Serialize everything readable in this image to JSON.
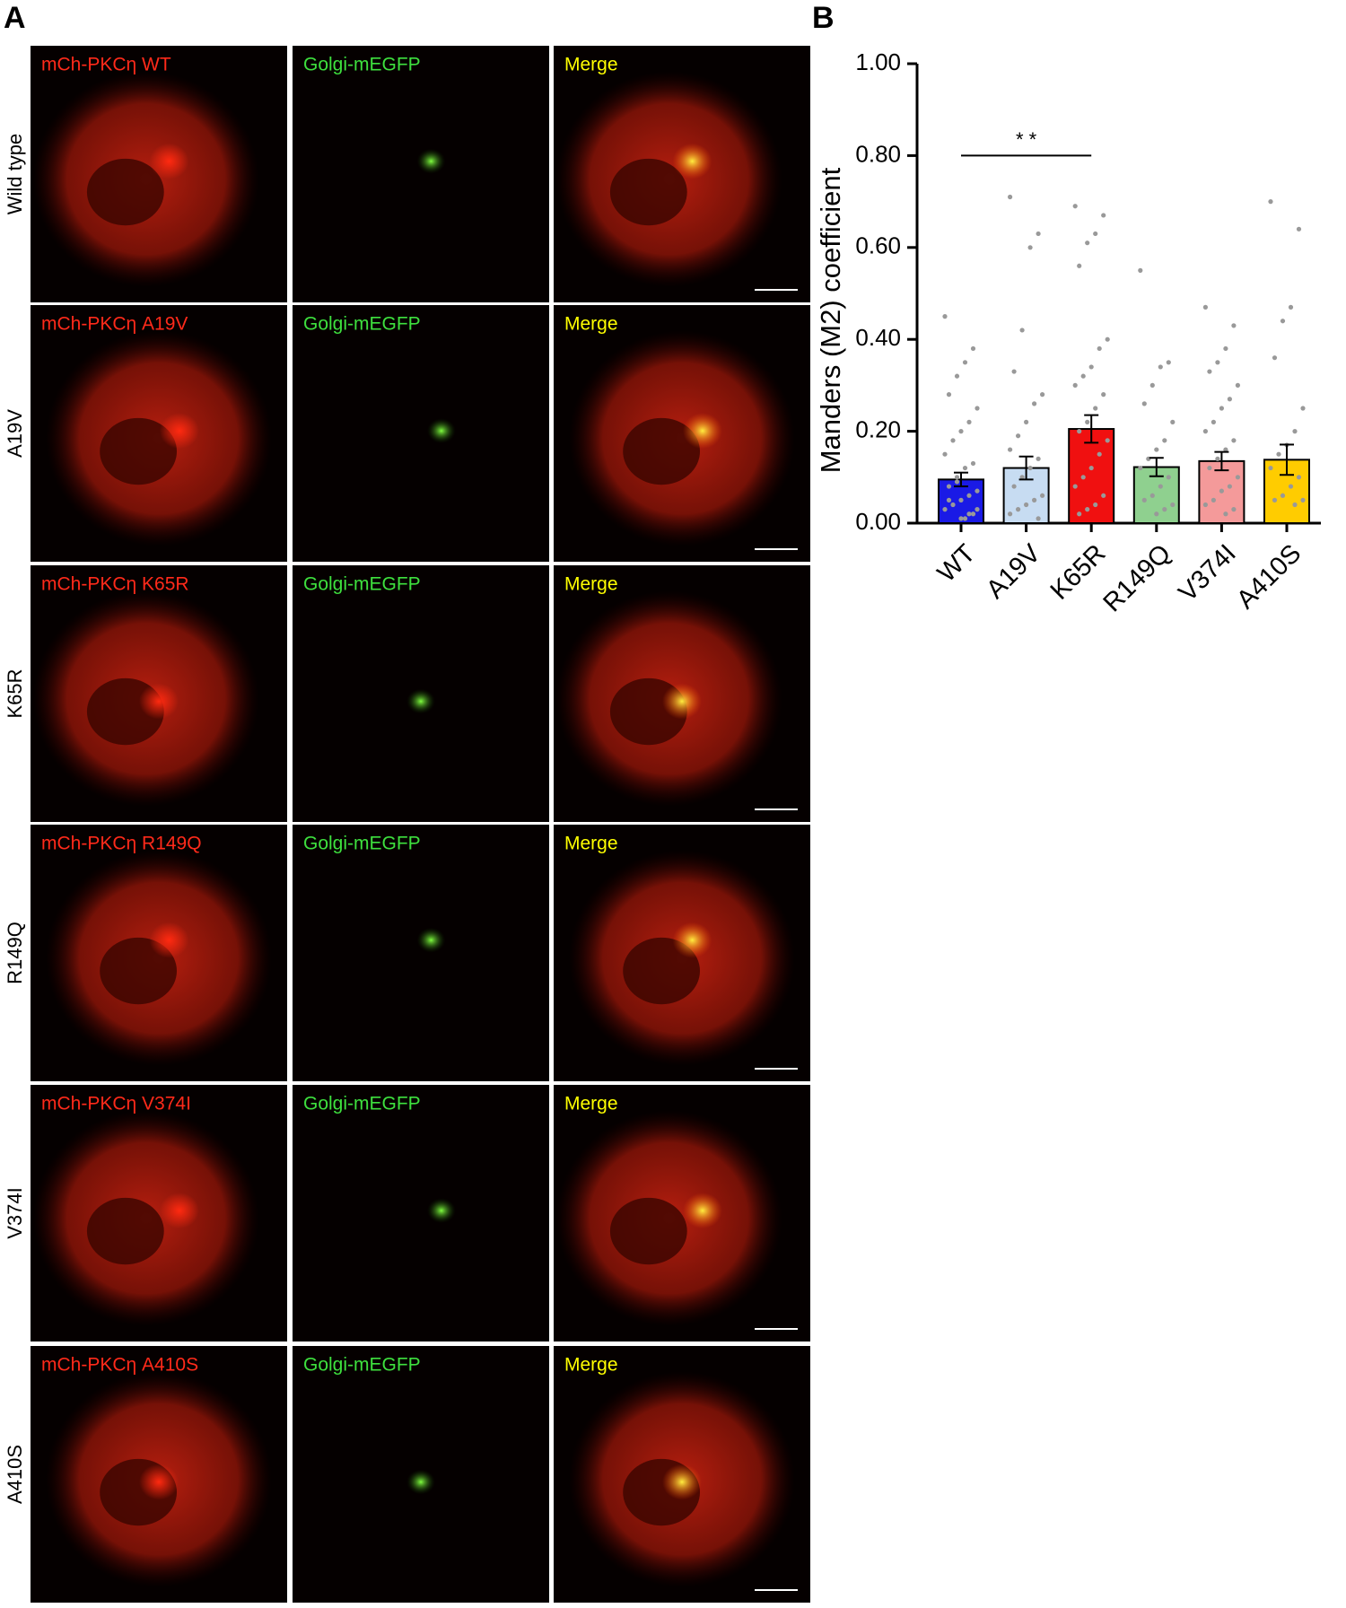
{
  "panel_a": {
    "label": "A",
    "rows": [
      {
        "name": "Wild type",
        "labels": [
          "mCh-PKCη WT",
          "Golgi-mEGFP",
          "Merge"
        ]
      },
      {
        "name": "A19V",
        "labels": [
          "mCh-PKCη A19V",
          "Golgi-mEGFP",
          "Merge"
        ]
      },
      {
        "name": "K65R",
        "labels": [
          "mCh-PKCη K65R",
          "Golgi-mEGFP",
          "Merge"
        ]
      },
      {
        "name": "R149Q",
        "labels": [
          "mCh-PKCη R149Q",
          "Golgi-mEGFP",
          "Merge"
        ]
      },
      {
        "name": "V374I",
        "labels": [
          "mCh-PKCη V374I",
          "Golgi-mEGFP",
          "Merge"
        ]
      },
      {
        "name": "A410S",
        "labels": [
          "mCh-PKCη A410S",
          "Golgi-mEGFP",
          "Merge"
        ]
      }
    ]
  },
  "panel_b_label": "B",
  "chart_data": {
    "type": "bar",
    "y_label": "Manders (M2) coefficient",
    "categories": [
      "WT",
      "A19V",
      "K65R",
      "R149Q",
      "V374I",
      "A410S"
    ],
    "values": [
      0.095,
      0.12,
      0.205,
      0.122,
      0.135,
      0.138
    ],
    "errors": [
      0.015,
      0.025,
      0.03,
      0.02,
      0.02,
      0.033
    ],
    "colors": [
      "#1a1ae6",
      "#c7dcf2",
      "#f01010",
      "#8fd08f",
      "#f49a9a",
      "#ffcc00"
    ],
    "points": [
      [
        0.45,
        0.38,
        0.35,
        0.32,
        0.28,
        0.25,
        0.22,
        0.2,
        0.18,
        0.15,
        0.13,
        0.12,
        0.1,
        0.08,
        0.07,
        0.06,
        0.05,
        0.04,
        0.03,
        0.02,
        0.01,
        0.09,
        0.05,
        0.03,
        0.02,
        0.01
      ],
      [
        0.71,
        0.63,
        0.6,
        0.42,
        0.33,
        0.28,
        0.26,
        0.22,
        0.19,
        0.16,
        0.14,
        0.12,
        0.1,
        0.08,
        0.06,
        0.05,
        0.04,
        0.03,
        0.02,
        0.01
      ],
      [
        0.69,
        0.67,
        0.63,
        0.61,
        0.56,
        0.4,
        0.38,
        0.34,
        0.32,
        0.3,
        0.28,
        0.25,
        0.22,
        0.2,
        0.18,
        0.15,
        0.12,
        0.1,
        0.08,
        0.06,
        0.04,
        0.03,
        0.02
      ],
      [
        0.55,
        0.35,
        0.34,
        0.3,
        0.26,
        0.22,
        0.18,
        0.16,
        0.14,
        0.12,
        0.1,
        0.08,
        0.06,
        0.05,
        0.04,
        0.03,
        0.02
      ],
      [
        0.47,
        0.43,
        0.38,
        0.35,
        0.33,
        0.3,
        0.27,
        0.25,
        0.22,
        0.2,
        0.18,
        0.16,
        0.14,
        0.12,
        0.1,
        0.08,
        0.07,
        0.05,
        0.04,
        0.03,
        0.02
      ],
      [
        0.7,
        0.64,
        0.47,
        0.44,
        0.36,
        0.25,
        0.2,
        0.17,
        0.15,
        0.12,
        0.1,
        0.08,
        0.06,
        0.05,
        0.05,
        0.04
      ]
    ],
    "point_color": "#999999",
    "significance": {
      "label": "* *",
      "between": [
        "WT",
        "K65R"
      ],
      "y": 0.8
    },
    "ylim": [
      0,
      1
    ],
    "yticks": [
      {
        "value": 0,
        "label": "0.00"
      },
      {
        "value": 0.2,
        "label": "0.20"
      },
      {
        "value": 0.4,
        "label": "0.40"
      },
      {
        "value": 0.6,
        "label": "0.60"
      },
      {
        "value": 0.8,
        "label": "0.80"
      },
      {
        "value": 1,
        "label": "1.00"
      }
    ]
  }
}
